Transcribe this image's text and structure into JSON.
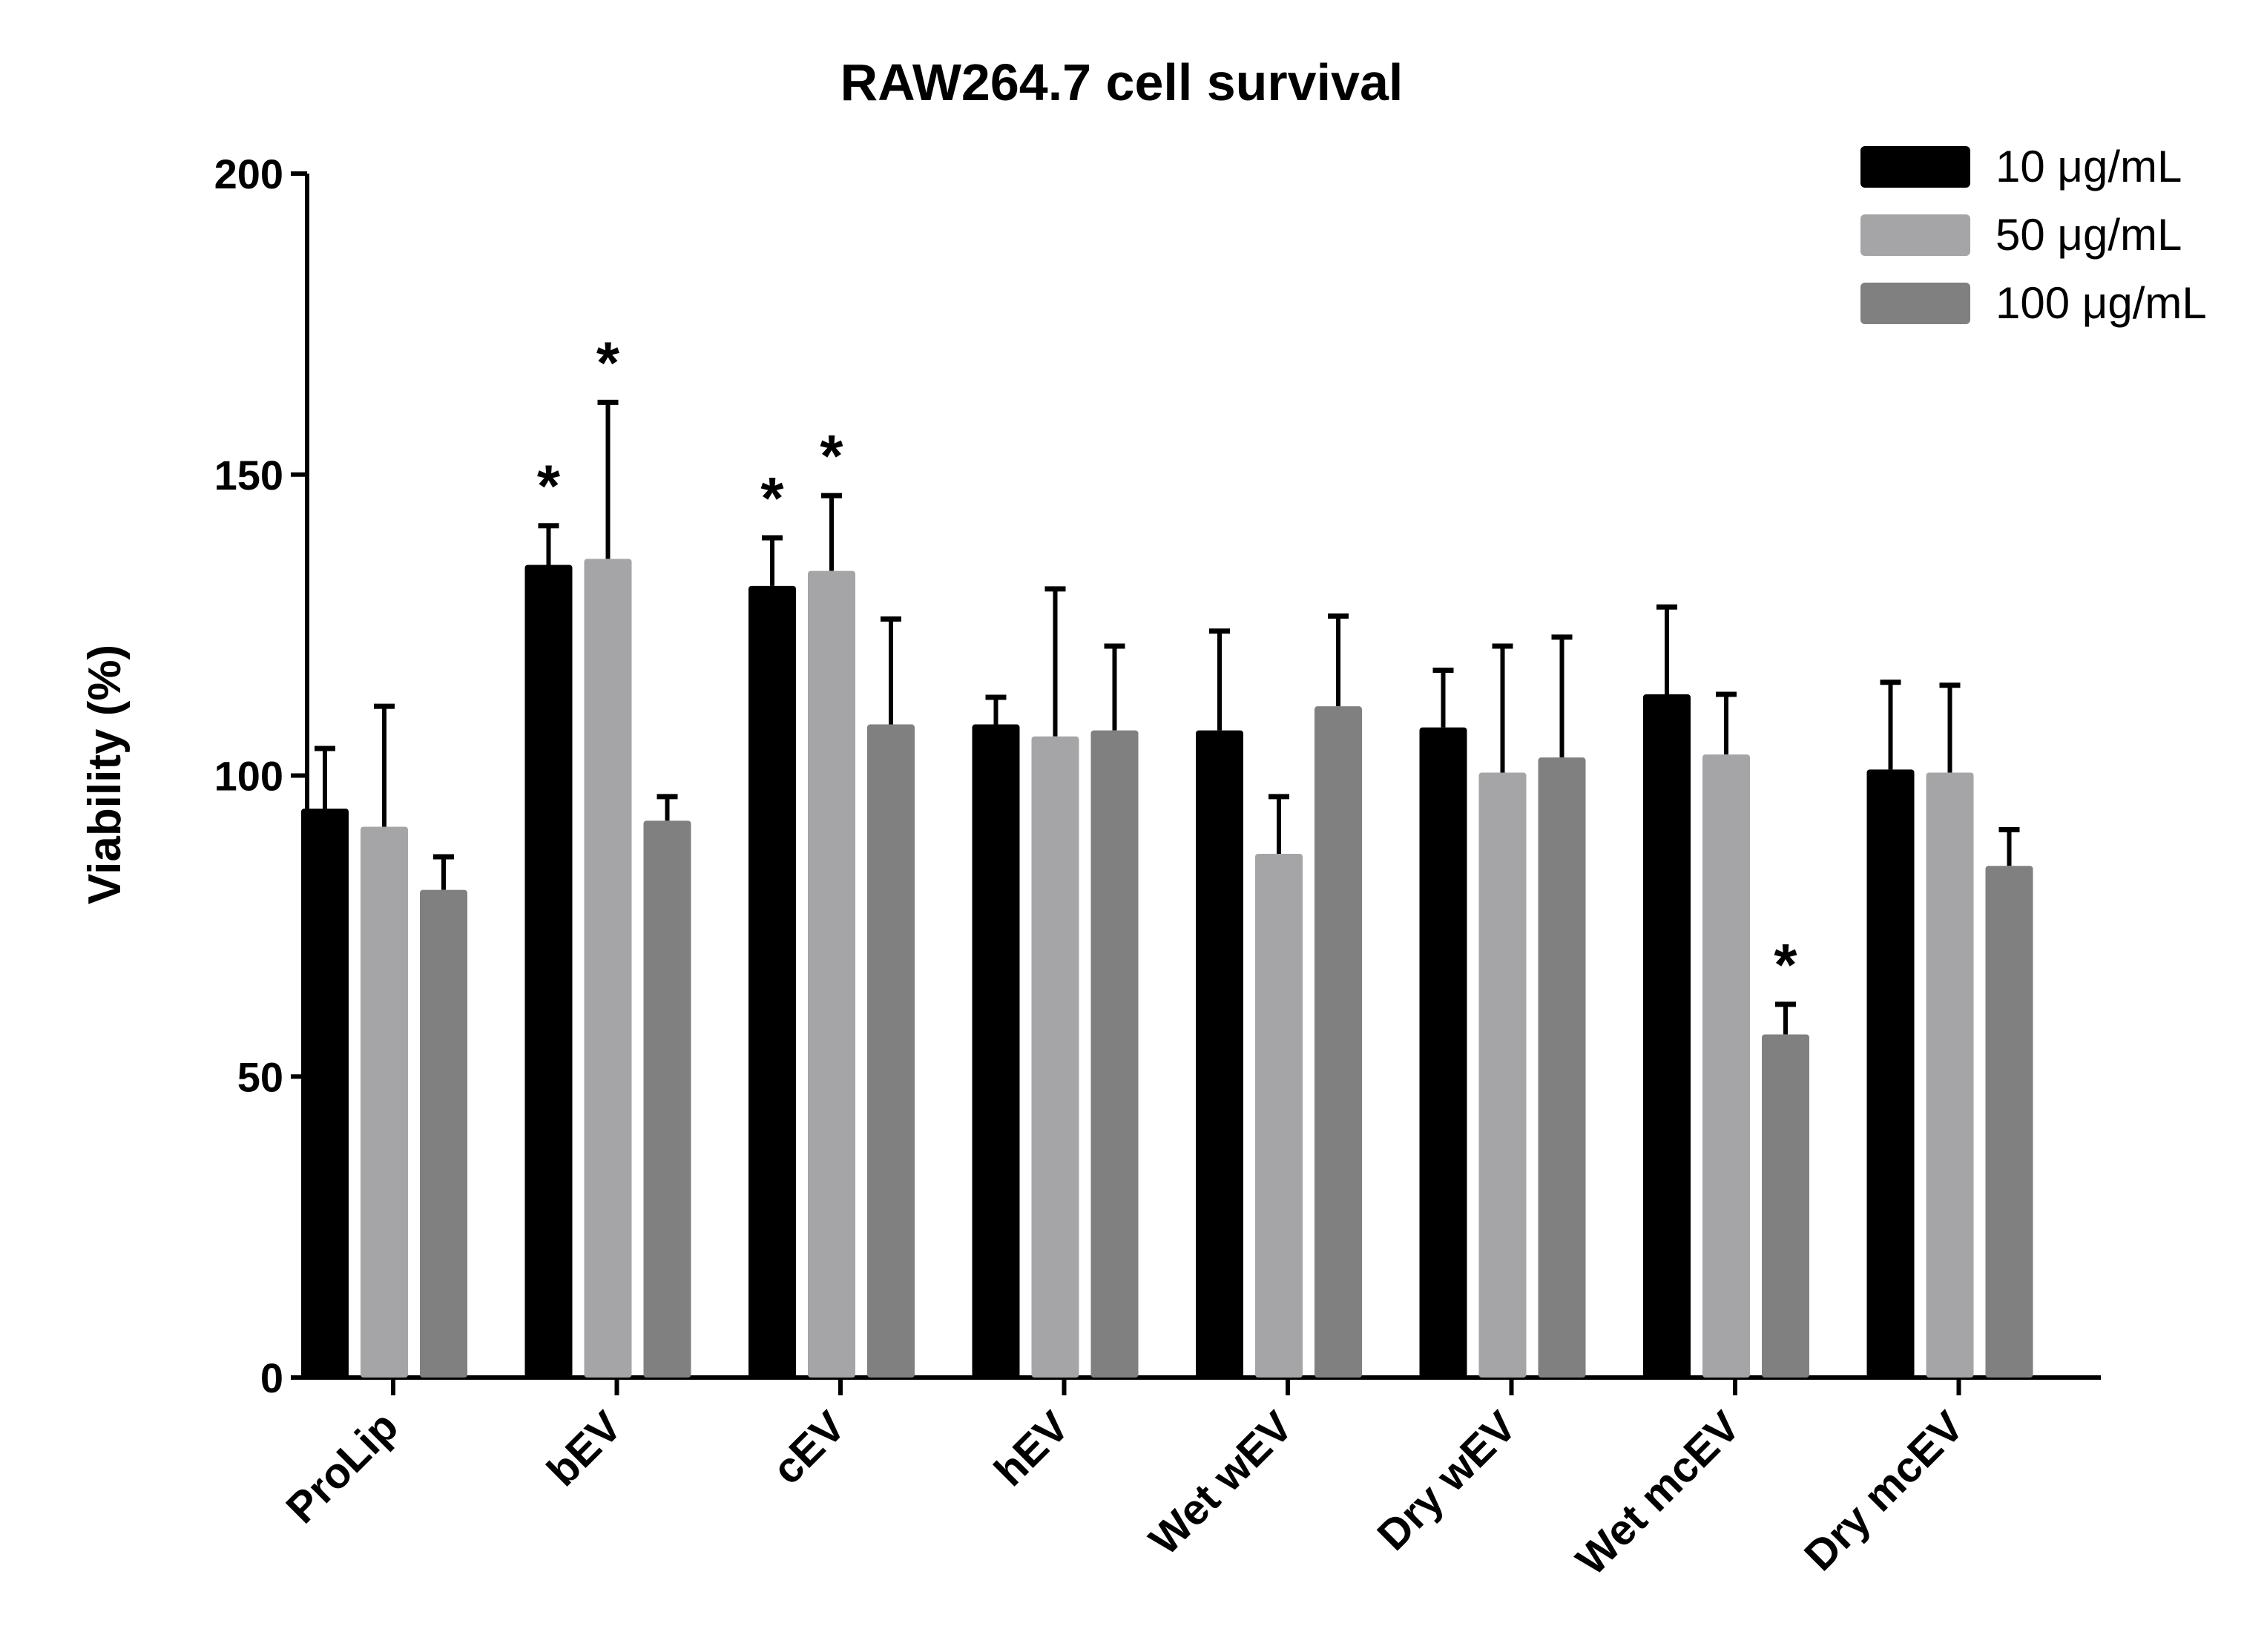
{
  "chart_data": {
    "type": "bar",
    "title": "RAW264.7 cell survival",
    "xlabel": "",
    "ylabel": "Viability (%)",
    "ylim": [
      0,
      200
    ],
    "yticks": [
      "0",
      "50",
      "100",
      "150",
      "200"
    ],
    "categories": [
      "ProLip",
      "bEV",
      "cEV",
      "hEV",
      "Wet wEV",
      "Dry wEV",
      "Wet mcEV",
      "Dry mcEV"
    ],
    "legend_position": "top-right",
    "series": [
      {
        "name": "10 μg/mL",
        "color": "#000000",
        "values": [
          94.5,
          135,
          131.5,
          108.5,
          107.5,
          108,
          113.5,
          101
        ],
        "errors": [
          10,
          6.5,
          8,
          4.5,
          16.5,
          9.5,
          14.5,
          14.5
        ],
        "significant": [
          false,
          true,
          true,
          false,
          false,
          false,
          false,
          false
        ]
      },
      {
        "name": "50 μg/mL",
        "color": "#a5a5a8",
        "values": [
          91.5,
          136,
          134,
          106.5,
          87,
          100.5,
          103.5,
          100.5
        ],
        "errors": [
          20,
          26,
          12.5,
          24.5,
          9.5,
          21,
          10,
          14.5
        ],
        "significant": [
          false,
          true,
          true,
          false,
          false,
          false,
          false,
          false
        ]
      },
      {
        "name": "100 μg/mL",
        "color": "#808080",
        "values": [
          81,
          92.5,
          108.5,
          107.5,
          111.5,
          103,
          57,
          85
        ],
        "errors": [
          5.5,
          4,
          17.5,
          14,
          15,
          20,
          5,
          6
        ],
        "significant": [
          false,
          false,
          false,
          false,
          false,
          false,
          true,
          false
        ]
      }
    ],
    "significance_marker": "*",
    "grid": false
  }
}
